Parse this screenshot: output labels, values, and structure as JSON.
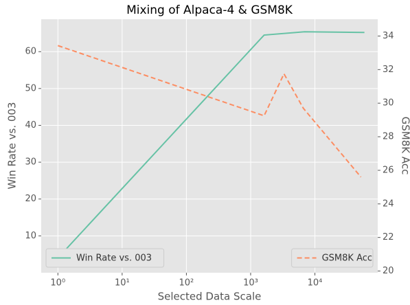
{
  "chart_data": {
    "type": "line",
    "title": "Mixing of Alpaca-4 & GSM8K",
    "xlabel": "Selected Data Scale",
    "ylabel": "Win Rate vs. 003",
    "y2label": "GSM8K Acc",
    "xscale": "log",
    "grid": true,
    "background": "#e5e5e5",
    "xlim": [
      0.55,
      95000
    ],
    "xticks": [
      {
        "value": 1,
        "label": "10⁰"
      },
      {
        "value": 10,
        "label": "10¹"
      },
      {
        "value": 100,
        "label": "10²"
      },
      {
        "value": 1000,
        "label": "10³"
      },
      {
        "value": 10000,
        "label": "10⁴"
      }
    ],
    "ylim": [
      0,
      68.8
    ],
    "yticks": [
      10,
      20,
      30,
      40,
      50,
      60
    ],
    "y2lim": [
      19.9,
      35.0
    ],
    "y2ticks": [
      20,
      22,
      24,
      26,
      28,
      30,
      32,
      34
    ],
    "series": [
      {
        "name": "Win Rate vs. 003",
        "color": "#66c2a5",
        "dash": false,
        "legend": "lower left",
        "x": [
          1,
          1620,
          6900,
          59000
        ],
        "values": [
          4.0,
          64.5,
          65.4,
          65.2
        ]
      },
      {
        "name": "GSM8K Acc",
        "color": "#fc8d62",
        "dash": true,
        "axis": "y2",
        "legend": "lower right",
        "x": [
          1,
          1620,
          3300,
          6600,
          52000
        ],
        "values": [
          33.43,
          29.25,
          31.75,
          29.7,
          25.6
        ]
      }
    ]
  }
}
